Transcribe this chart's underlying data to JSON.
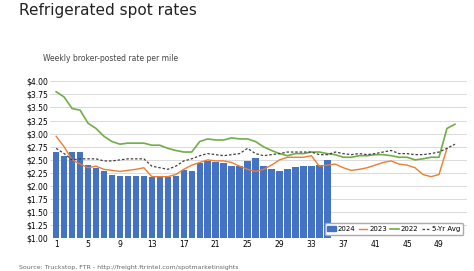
{
  "title": "Refrigerated spot rates",
  "subtitle": "Weekly broker-posted rate per mile",
  "source": "Source: Truckstop, FTR - http://freight.ftrintel.com/spotmarketinsights",
  "ylim": [
    1.0,
    4.0
  ],
  "yticks": [
    1.0,
    1.25,
    1.5,
    1.75,
    2.0,
    2.25,
    2.5,
    2.75,
    3.0,
    3.25,
    3.5,
    3.75,
    4.0
  ],
  "xticks": [
    1,
    5,
    9,
    13,
    17,
    21,
    25,
    29,
    33,
    37,
    41,
    45,
    49
  ],
  "bar_color": "#4472C4",
  "line_2023_color": "#ED7D31",
  "line_2022_color": "#70AD47",
  "line_5yr_color": "#404040",
  "bar_2024": [
    2.65,
    2.58,
    2.65,
    2.65,
    2.4,
    2.35,
    2.28,
    2.22,
    2.2,
    2.2,
    2.2,
    2.2,
    2.18,
    2.18,
    2.18,
    2.2,
    2.3,
    2.28,
    2.45,
    2.48,
    2.46,
    2.44,
    2.38,
    2.38,
    2.48,
    2.54,
    2.38,
    2.33,
    2.28,
    2.32,
    2.36,
    2.38,
    2.38,
    2.4,
    2.5,
    null,
    null,
    null,
    null,
    null,
    null,
    null,
    null,
    null,
    null,
    null,
    null,
    null,
    null,
    null,
    null,
    null
  ],
  "line_2023": [
    2.95,
    2.75,
    2.5,
    2.42,
    2.35,
    2.38,
    2.32,
    2.3,
    2.28,
    2.3,
    2.32,
    2.35,
    2.18,
    2.18,
    2.18,
    2.22,
    2.32,
    2.4,
    2.45,
    2.5,
    2.48,
    2.48,
    2.45,
    2.38,
    2.32,
    2.28,
    2.32,
    2.4,
    2.5,
    2.55,
    2.55,
    2.55,
    2.58,
    2.38,
    2.4,
    2.42,
    2.35,
    2.3,
    2.32,
    2.35,
    2.4,
    2.45,
    2.48,
    2.42,
    2.4,
    2.35,
    2.22,
    2.18,
    2.22,
    2.72,
    null,
    null
  ],
  "line_2022": [
    3.8,
    3.7,
    3.48,
    3.45,
    3.2,
    3.1,
    2.95,
    2.85,
    2.8,
    2.82,
    2.82,
    2.82,
    2.78,
    2.78,
    2.72,
    2.68,
    2.65,
    2.65,
    2.85,
    2.9,
    2.88,
    2.88,
    2.92,
    2.9,
    2.9,
    2.85,
    2.75,
    2.68,
    2.62,
    2.58,
    2.62,
    2.62,
    2.65,
    2.65,
    2.62,
    2.6,
    2.55,
    2.55,
    2.58,
    2.58,
    2.6,
    2.6,
    2.58,
    2.55,
    2.55,
    2.5,
    2.52,
    2.55,
    2.55,
    3.1,
    3.18,
    null
  ],
  "line_5yr": [
    2.72,
    2.62,
    2.5,
    2.52,
    2.52,
    2.52,
    2.48,
    2.48,
    2.5,
    2.52,
    2.52,
    2.52,
    2.38,
    2.35,
    2.32,
    2.38,
    2.48,
    2.52,
    2.58,
    2.62,
    2.6,
    2.58,
    2.6,
    2.62,
    2.72,
    2.62,
    2.58,
    2.6,
    2.62,
    2.65,
    2.65,
    2.65,
    2.65,
    2.6,
    2.6,
    2.65,
    2.62,
    2.6,
    2.62,
    2.6,
    2.62,
    2.65,
    2.68,
    2.62,
    2.62,
    2.6,
    2.6,
    2.62,
    2.65,
    2.72,
    2.8,
    null
  ]
}
